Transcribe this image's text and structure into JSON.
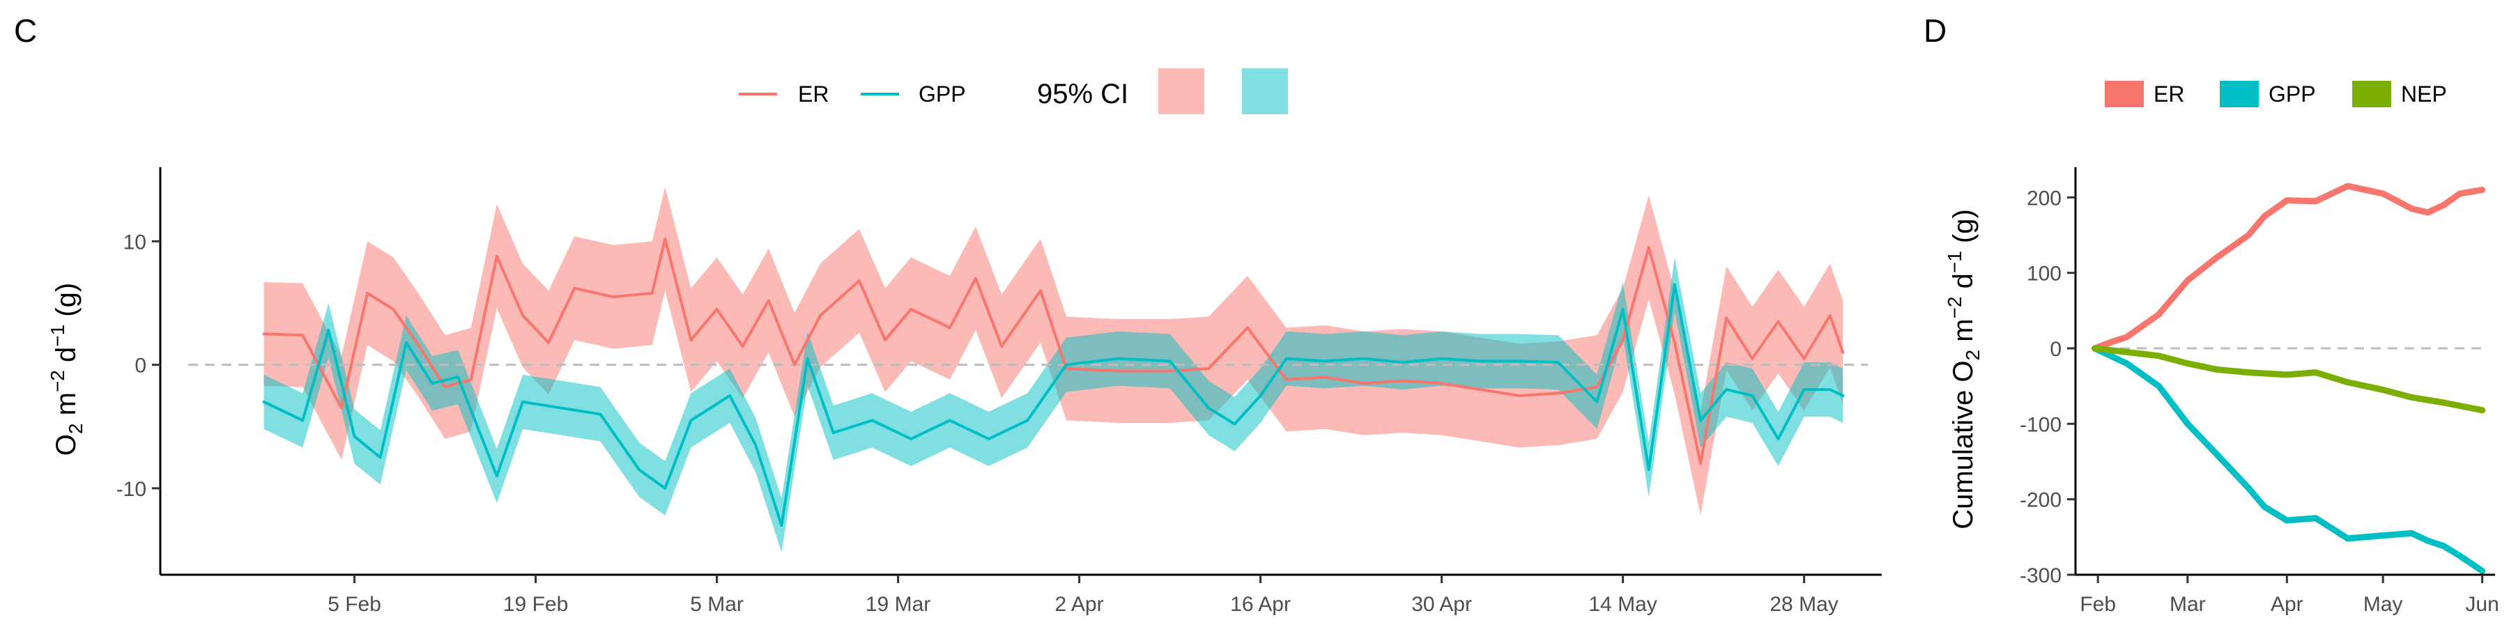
{
  "panels": {
    "left": "C",
    "right": "D"
  },
  "legend_c": {
    "er": "ER",
    "gpp": "GPP",
    "ci": "95% CI"
  },
  "legend_d": {
    "er": "ER",
    "gpp": "GPP",
    "nep": "NEP"
  },
  "colors": {
    "er": "#F8766D",
    "gpp": "#00BFC4",
    "nep": "#7CAE00",
    "er_ci": "#F8766D",
    "gpp_ci": "#00BFC4",
    "zero_line": "#bdbdbd",
    "axis": "#000000"
  },
  "chart_data": [
    {
      "type": "line",
      "panel": "C",
      "ylabel_parts": [
        "O",
        "2",
        " m",
        "−2",
        " d",
        "−1",
        " (g)"
      ],
      "ylim": [
        -17,
        16
      ],
      "yticks": [
        -10,
        0,
        10
      ],
      "x_tick_labels": [
        "5 Feb",
        "19 Feb",
        "5 Mar",
        "19 Mar",
        "2 Apr",
        "16 Apr",
        "30 Apr",
        "14 May",
        "28 May"
      ],
      "x_tick_dates": [
        "2021-02-05",
        "2021-02-19",
        "2021-03-05",
        "2021-03-19",
        "2021-04-02",
        "2021-04-16",
        "2021-04-30",
        "2021-05-14",
        "2021-05-28"
      ],
      "xlim": [
        "2021-01-21",
        "2021-06-03"
      ],
      "zero_line": true,
      "series": [
        {
          "name": "ER",
          "x": [
            "2021-01-29",
            "2021-02-01",
            "2021-02-04",
            "2021-02-06",
            "2021-02-08",
            "2021-02-10",
            "2021-02-12",
            "2021-02-14",
            "2021-02-16",
            "2021-02-18",
            "2021-02-20",
            "2021-02-22",
            "2021-02-25",
            "2021-02-28",
            "2021-03-01",
            "2021-03-03",
            "2021-03-05",
            "2021-03-07",
            "2021-03-09",
            "2021-03-11",
            "2021-03-13",
            "2021-03-16",
            "2021-03-18",
            "2021-03-20",
            "2021-03-23",
            "2021-03-25",
            "2021-03-27",
            "2021-03-30",
            "2021-04-01",
            "2021-04-05",
            "2021-04-09",
            "2021-04-12",
            "2021-04-15",
            "2021-04-18",
            "2021-04-21",
            "2021-04-24",
            "2021-04-27",
            "2021-04-30",
            "2021-05-03",
            "2021-05-06",
            "2021-05-09",
            "2021-05-12",
            "2021-05-14",
            "2021-05-16",
            "2021-05-18",
            "2021-05-20",
            "2021-05-22",
            "2021-05-24",
            "2021-05-26",
            "2021-05-28",
            "2021-05-30",
            "2021-05-31"
          ],
          "values": [
            2.5,
            2.4,
            -3.5,
            5.8,
            4.5,
            1.5,
            -1.8,
            -1.2,
            8.8,
            4.0,
            1.8,
            6.2,
            5.5,
            5.8,
            10.2,
            2.0,
            4.5,
            1.5,
            5.2,
            0.0,
            4.0,
            6.8,
            2.0,
            4.5,
            3.0,
            7.0,
            1.5,
            6.0,
            -0.3,
            -0.5,
            -0.5,
            -0.3,
            3.0,
            -1.2,
            -1.0,
            -1.5,
            -1.3,
            -1.5,
            -2.0,
            -2.5,
            -2.3,
            -1.8,
            2.0,
            9.5,
            1.8,
            -8.0,
            3.8,
            0.5,
            3.5,
            0.5,
            4.0,
            1.0
          ]
        },
        {
          "name": "GPP",
          "x": [
            "2021-01-29",
            "2021-02-01",
            "2021-02-03",
            "2021-02-05",
            "2021-02-07",
            "2021-02-09",
            "2021-02-11",
            "2021-02-13",
            "2021-02-16",
            "2021-02-18",
            "2021-02-21",
            "2021-02-24",
            "2021-02-27",
            "2021-03-01",
            "2021-03-03",
            "2021-03-06",
            "2021-03-08",
            "2021-03-10",
            "2021-03-12",
            "2021-03-14",
            "2021-03-17",
            "2021-03-20",
            "2021-03-23",
            "2021-03-26",
            "2021-03-29",
            "2021-04-01",
            "2021-04-05",
            "2021-04-09",
            "2021-04-12",
            "2021-04-14",
            "2021-04-16",
            "2021-04-18",
            "2021-04-21",
            "2021-04-24",
            "2021-04-27",
            "2021-04-30",
            "2021-05-03",
            "2021-05-06",
            "2021-05-09",
            "2021-05-12",
            "2021-05-14",
            "2021-05-16",
            "2021-05-18",
            "2021-05-20",
            "2021-05-22",
            "2021-05-24",
            "2021-05-26",
            "2021-05-28",
            "2021-05-30",
            "2021-05-31"
          ],
          "values": [
            -3.0,
            -4.5,
            2.8,
            -5.8,
            -7.5,
            1.8,
            -1.5,
            -1.0,
            -9.0,
            -3.0,
            -3.5,
            -4.0,
            -8.5,
            -10.0,
            -4.5,
            -2.5,
            -6.5,
            -13.0,
            0.5,
            -5.5,
            -4.5,
            -6.0,
            -4.5,
            -6.0,
            -4.5,
            0.0,
            0.5,
            0.3,
            -3.5,
            -4.8,
            -2.5,
            0.5,
            0.3,
            0.5,
            0.2,
            0.5,
            0.3,
            0.3,
            0.2,
            -3.0,
            4.5,
            -8.5,
            6.5,
            -4.5,
            -2.0,
            -2.5,
            -6.0,
            -2.0,
            -2.0,
            -2.5
          ]
        }
      ]
    },
    {
      "type": "line",
      "panel": "D",
      "ylabel_parts": [
        "Cumulative O",
        "2",
        " m",
        "−2",
        " d",
        "−1",
        " (g)"
      ],
      "ylim": [
        -300,
        240
      ],
      "yticks": [
        -300,
        -200,
        -100,
        0,
        100,
        200
      ],
      "x_tick_labels": [
        "Feb",
        "Mar",
        "Apr",
        "May",
        "Jun"
      ],
      "x_tick_dates": [
        "2021-02-01",
        "2021-03-01",
        "2021-04-01",
        "2021-05-01",
        "2021-06-01"
      ],
      "xlim": [
        "2021-01-25",
        "2021-06-05"
      ],
      "zero_line": true,
      "series": [
        {
          "name": "ER",
          "x": [
            "2021-01-31",
            "2021-02-05",
            "2021-02-10",
            "2021-02-20",
            "2021-03-01",
            "2021-03-10",
            "2021-03-20",
            "2021-03-25",
            "2021-04-01",
            "2021-04-10",
            "2021-04-20",
            "2021-05-01",
            "2021-05-10",
            "2021-05-15",
            "2021-05-20",
            "2021-05-25",
            "2021-06-01"
          ],
          "values": [
            0,
            8,
            15,
            45,
            90,
            120,
            150,
            175,
            196,
            195,
            215,
            205,
            185,
            180,
            190,
            205,
            210
          ]
        },
        {
          "name": "GPP",
          "x": [
            "2021-01-31",
            "2021-02-05",
            "2021-02-10",
            "2021-02-20",
            "2021-03-01",
            "2021-03-10",
            "2021-03-20",
            "2021-03-25",
            "2021-04-01",
            "2021-04-10",
            "2021-04-20",
            "2021-05-01",
            "2021-05-10",
            "2021-05-15",
            "2021-05-20",
            "2021-05-25",
            "2021-06-01"
          ],
          "values": [
            0,
            -10,
            -20,
            -50,
            -100,
            -140,
            -185,
            -210,
            -228,
            -225,
            -252,
            -248,
            -245,
            -255,
            -262,
            -275,
            -295
          ]
        },
        {
          "name": "NEP",
          "x": [
            "2021-01-31",
            "2021-02-10",
            "2021-02-20",
            "2021-03-01",
            "2021-03-10",
            "2021-03-20",
            "2021-04-01",
            "2021-04-10",
            "2021-04-20",
            "2021-05-01",
            "2021-05-10",
            "2021-05-20",
            "2021-06-01"
          ],
          "values": [
            0,
            -5,
            -10,
            -20,
            -28,
            -32,
            -35,
            -32,
            -45,
            -55,
            -65,
            -72,
            -82
          ]
        }
      ]
    }
  ]
}
